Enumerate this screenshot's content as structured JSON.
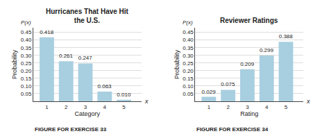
{
  "chart_data": [
    {
      "type": "bar",
      "title": "Hurricanes That Have Hit\nthe U.S.",
      "x": [
        1,
        2,
        3,
        4,
        5
      ],
      "values": [
        0.418,
        0.261,
        0.247,
        0.063,
        0.01
      ],
      "value_labels": [
        "0.418",
        "0.261",
        "0.247",
        "0.063",
        "0.010"
      ],
      "data_labels": true,
      "xlabel": "Category",
      "ylabel": "Probability",
      "xlim": [
        0.3,
        5.9
      ],
      "xticks": [
        1,
        2,
        3,
        4,
        5
      ],
      "ylim": [
        0,
        0.48
      ],
      "yticks": [
        {
          "value": 0.05,
          "label": "0.05"
        },
        {
          "value": 0.1,
          "label": "0.10"
        },
        {
          "value": 0.15,
          "label": "0.15"
        },
        {
          "value": 0.2,
          "label": "0.20"
        },
        {
          "value": 0.25,
          "label": "0.25"
        },
        {
          "value": 0.3,
          "label": "0.30"
        },
        {
          "value": 0.35,
          "label": "0.35"
        },
        {
          "value": 0.4,
          "label": "0.40"
        },
        {
          "value": 0.45,
          "label": "0.45"
        }
      ],
      "color": "#a8cfe0",
      "grid": true,
      "annotations": [
        "P(x)",
        "x",
        "FIGURE FOR EXERCISE 33"
      ]
    },
    {
      "type": "bar",
      "title": "Reviewer Ratings",
      "x": [
        1,
        2,
        3,
        4,
        5
      ],
      "values": [
        0.029,
        0.075,
        0.209,
        0.299,
        0.388
      ],
      "value_labels": [
        "0.029",
        "0.075",
        "0.209",
        "0.299",
        "0.388"
      ],
      "data_labels": true,
      "xlabel": "Rating",
      "ylabel": "Probability",
      "xlim": [
        0.3,
        5.9
      ],
      "xticks": [
        1,
        2,
        3,
        4,
        5
      ],
      "ylim": [
        0,
        0.48
      ],
      "yticks": [
        {
          "value": 0.05,
          "label": "0.05"
        },
        {
          "value": 0.1,
          "label": "0.10"
        },
        {
          "value": 0.15,
          "label": "0.15"
        },
        {
          "value": 0.2,
          "label": "0.20"
        },
        {
          "value": 0.25,
          "label": "0.25"
        },
        {
          "value": 0.3,
          "label": "0.30"
        },
        {
          "value": 0.35,
          "label": "0.35"
        },
        {
          "value": 0.4,
          "label": "0.40"
        },
        {
          "value": 0.45,
          "label": "0.45"
        }
      ],
      "color": "#a8cfe0",
      "grid": true,
      "annotations": [
        "P(x)",
        "x",
        "FIGURE FOR EXERCISE 34"
      ]
    }
  ]
}
